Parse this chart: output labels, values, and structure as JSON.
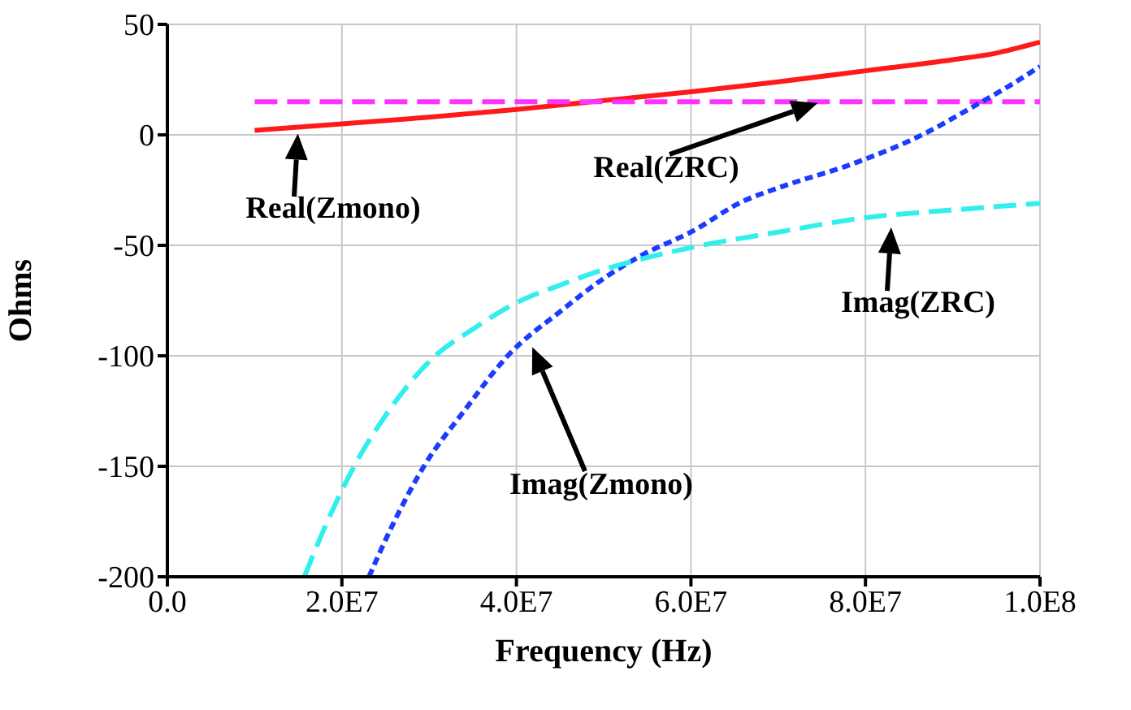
{
  "chart_data": {
    "type": "line",
    "xlabel": "Frequency (Hz)",
    "ylabel": "Ohms",
    "xlim": [
      0,
      100000000
    ],
    "xticks": [
      {
        "value": 0,
        "label": "0.0"
      },
      {
        "value": 20000000,
        "label": "2.0E7"
      },
      {
        "value": 40000000,
        "label": "4.0E7"
      },
      {
        "value": 60000000,
        "label": "6.0E7"
      },
      {
        "value": 80000000,
        "label": "8.0E7"
      },
      {
        "value": 100000000,
        "label": "1.0E8"
      }
    ],
    "ylim": [
      -200,
      50
    ],
    "yticks": [
      -200,
      -150,
      -100,
      -50,
      0,
      50
    ],
    "grid": true,
    "legend": false,
    "marker": "none",
    "series": [
      {
        "color": "#ff1a1a",
        "line_style": "solid",
        "x": [
          10000000,
          20000000,
          30000000,
          40000000,
          50000000,
          60000000,
          70000000,
          80000000,
          90000000,
          95000000,
          100000000
        ],
        "values": [
          2,
          5,
          8,
          11.5,
          15.5,
          19.5,
          24,
          29,
          34,
          37,
          42
        ]
      },
      {
        "color": "#ff33ff",
        "line_style": "dashed",
        "x": [
          10000000,
          100000000
        ],
        "values": [
          15,
          15
        ]
      },
      {
        "color": "#1a3cff",
        "line_style": "dotted",
        "x": [
          23100000,
          26000000,
          29400000,
          34000000,
          39000000,
          45000000,
          50000000,
          54600000,
          60000000,
          66000000,
          70000000,
          78600000,
          87000000,
          92000000,
          96000000,
          100000000
        ],
        "values": [
          -200,
          -175,
          -150,
          -125,
          -100,
          -80,
          -65,
          -54,
          -44,
          -30,
          -24,
          -13,
          1,
          12,
          21,
          31
        ]
      },
      {
        "color": "#33eeee",
        "line_style": "dashed",
        "x": [
          15700000,
          18000000,
          21400000,
          25000000,
          30700000,
          35000000,
          40000000,
          45000000,
          50000000,
          60000000,
          70000000,
          80000000,
          90000000,
          100000000
        ],
        "values": [
          -200,
          -178,
          -150,
          -127,
          -100,
          -88,
          -76,
          -68,
          -61,
          -51,
          -44,
          -37.5,
          -34,
          -31
        ]
      }
    ],
    "annotations": [
      {
        "text": "Real(Zmono)",
        "x": 15000000,
        "y": 3.5
      },
      "Real(ZRC)",
      {
        "text": "Imag(ZRC)",
        "x": 83000000,
        "y": -39
      },
      "Imag(Zmono)"
    ]
  }
}
